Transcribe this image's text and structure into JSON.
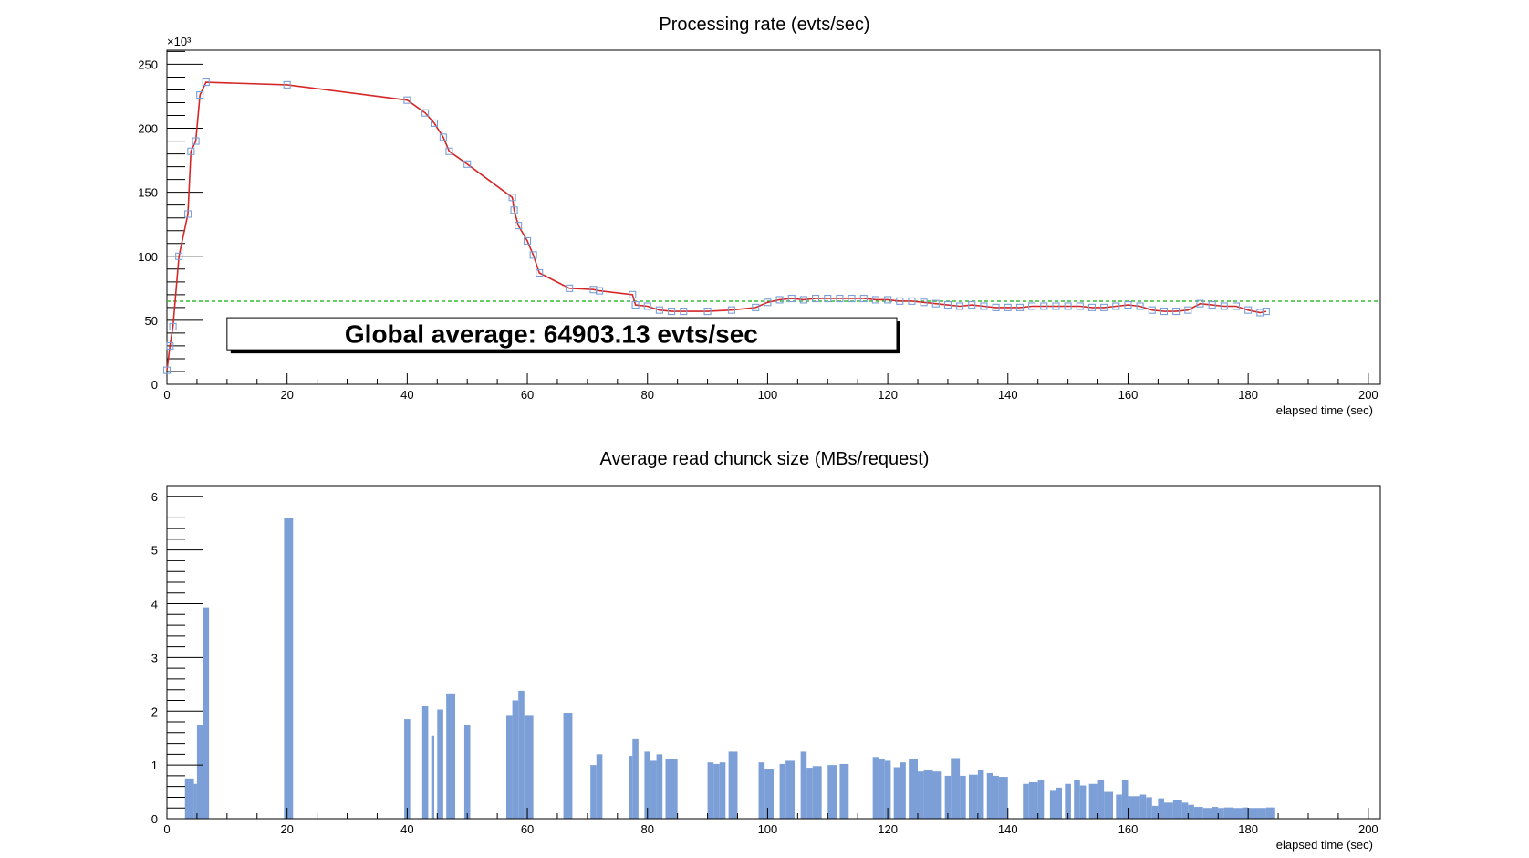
{
  "chart_data": [
    {
      "type": "line",
      "title": "Processing rate (evts/sec)",
      "xlabel": "elapsed time (sec)",
      "ylabel": "",
      "y_multiplier_label": "×10³",
      "xlim": [
        0,
        202
      ],
      "ylim": [
        0,
        261
      ],
      "x_ticks": [
        0,
        20,
        40,
        60,
        80,
        100,
        120,
        140,
        160,
        180,
        200
      ],
      "y_ticks": [
        0,
        50,
        100,
        150,
        200,
        250
      ],
      "y_scale_factor": 1000,
      "grid": false,
      "colors": {
        "line": "#d62728",
        "marker": "#7b9fd6",
        "average": "#33bb33"
      },
      "series": [
        {
          "x": [
            0,
            0.5,
            1,
            2,
            3.5,
            4,
            4.8,
            5.5,
            6.5,
            20,
            40,
            43,
            44.5,
            46,
            47,
            50,
            57.5,
            57.8,
            58.5,
            60,
            61,
            62,
            67,
            71,
            72,
            77.5,
            78,
            80,
            82,
            84,
            86,
            90,
            94,
            98,
            100,
            102,
            104,
            106,
            108,
            110,
            112,
            114,
            116,
            118,
            120,
            122,
            124,
            126,
            128,
            130,
            132,
            134,
            136,
            138,
            140,
            142,
            144,
            146,
            148,
            150,
            152,
            154,
            156,
            158,
            160,
            162,
            164,
            166,
            168,
            170,
            172,
            174,
            176,
            178,
            180,
            182,
            183
          ],
          "y": [
            11,
            30,
            45,
            100,
            133,
            182,
            190,
            226,
            236,
            234,
            222,
            212,
            204,
            193,
            182,
            172,
            146,
            136,
            124,
            112,
            101,
            87,
            75,
            74,
            73,
            70,
            62,
            61,
            58,
            57,
            57,
            57,
            58,
            60,
            64,
            66,
            67,
            66,
            67,
            67,
            67,
            67,
            67,
            66,
            66,
            65,
            65,
            64,
            63,
            62,
            61,
            62,
            61,
            60,
            60,
            60,
            61,
            61,
            61,
            61,
            61,
            60,
            60,
            61,
            62,
            61,
            58,
            57,
            57,
            58,
            63,
            62,
            61,
            61,
            58,
            56,
            57
          ]
        }
      ],
      "average_line_value": 64.90313,
      "annotation": "Global average: 64903.13 evts/sec"
    },
    {
      "type": "bar",
      "title": "Average read chunck size (MBs/request)",
      "xlabel": "elapsed time (sec)",
      "ylabel": "",
      "xlim": [
        0,
        202
      ],
      "ylim": [
        0,
        6.2
      ],
      "x_ticks": [
        0,
        20,
        40,
        60,
        80,
        100,
        120,
        140,
        160,
        180,
        200
      ],
      "y_ticks": [
        0,
        1,
        2,
        3,
        4,
        5,
        6
      ],
      "grid": false,
      "colors": {
        "bar": "#7b9fd6"
      },
      "series": [
        {
          "x_start": [
            3,
            4.5,
            5,
            6,
            19.5,
            39.5,
            42.5,
            44,
            45,
            46.5,
            49.5,
            56.5,
            57.5,
            58.5,
            59.5,
            66,
            70.5,
            71.5,
            77,
            77.5,
            79.5,
            80.5,
            81.5,
            83,
            90,
            91,
            92,
            93.5,
            98.5,
            99.5,
            102,
            103,
            105.5,
            106.5,
            107.5,
            110,
            112,
            117.5,
            118.5,
            119.5,
            121,
            122,
            123.5,
            125,
            126,
            127.5,
            129.5,
            130.5,
            132,
            133.5,
            135,
            136.5,
            137.5,
            138.5,
            142.5,
            143.5,
            145,
            147,
            148,
            149.5,
            151,
            152,
            153.5,
            155,
            156,
            158,
            159,
            160,
            162,
            163,
            164,
            165,
            166,
            167.5,
            169,
            170,
            171,
            172.5,
            174,
            175,
            176,
            177.5,
            179,
            180,
            181.5,
            183
          ],
          "x_end": [
            4.5,
            5,
            6,
            7,
            21,
            40.5,
            43.5,
            44.5,
            46,
            48,
            50.5,
            57.5,
            58.5,
            59.5,
            61,
            67.5,
            71.5,
            72.5,
            77.5,
            78.5,
            80.5,
            81.5,
            82.5,
            85,
            91,
            92,
            93,
            95,
            99.5,
            101,
            103,
            104.5,
            106.5,
            107.5,
            109,
            111.5,
            113.5,
            118.5,
            119.5,
            120.5,
            122,
            123,
            125,
            126,
            127.5,
            129,
            130.5,
            132,
            133,
            135,
            136,
            137.5,
            138.5,
            140,
            143.5,
            145,
            146,
            148,
            149,
            150.5,
            152,
            153,
            155,
            156,
            157.5,
            159,
            160,
            162,
            163,
            164,
            165,
            166,
            167.5,
            169,
            170,
            171,
            172.5,
            174,
            175,
            176,
            177.5,
            179,
            180,
            181.5,
            183,
            184.5
          ],
          "values": [
            0.75,
            0.65,
            1.75,
            3.93,
            5.6,
            1.85,
            2.1,
            1.55,
            2.03,
            2.33,
            1.75,
            1.93,
            2.2,
            2.38,
            1.93,
            1.97,
            1.0,
            1.2,
            1.17,
            1.48,
            1.25,
            1.08,
            1.2,
            1.12,
            1.05,
            1.02,
            1.05,
            1.25,
            1.05,
            0.92,
            1.02,
            1.08,
            1.25,
            0.95,
            0.98,
            1.0,
            1.02,
            1.15,
            1.12,
            1.08,
            0.96,
            1.05,
            1.12,
            0.88,
            0.9,
            0.88,
            0.8,
            1.13,
            0.8,
            0.82,
            0.9,
            0.85,
            0.8,
            0.78,
            0.65,
            0.68,
            0.72,
            0.52,
            0.58,
            0.65,
            0.72,
            0.62,
            0.65,
            0.72,
            0.5,
            0.45,
            0.72,
            0.42,
            0.45,
            0.4,
            0.24,
            0.38,
            0.3,
            0.34,
            0.3,
            0.26,
            0.22,
            0.2,
            0.22,
            0.2,
            0.21,
            0.2,
            0.21,
            0.2,
            0.2,
            0.21
          ]
        }
      ]
    }
  ]
}
